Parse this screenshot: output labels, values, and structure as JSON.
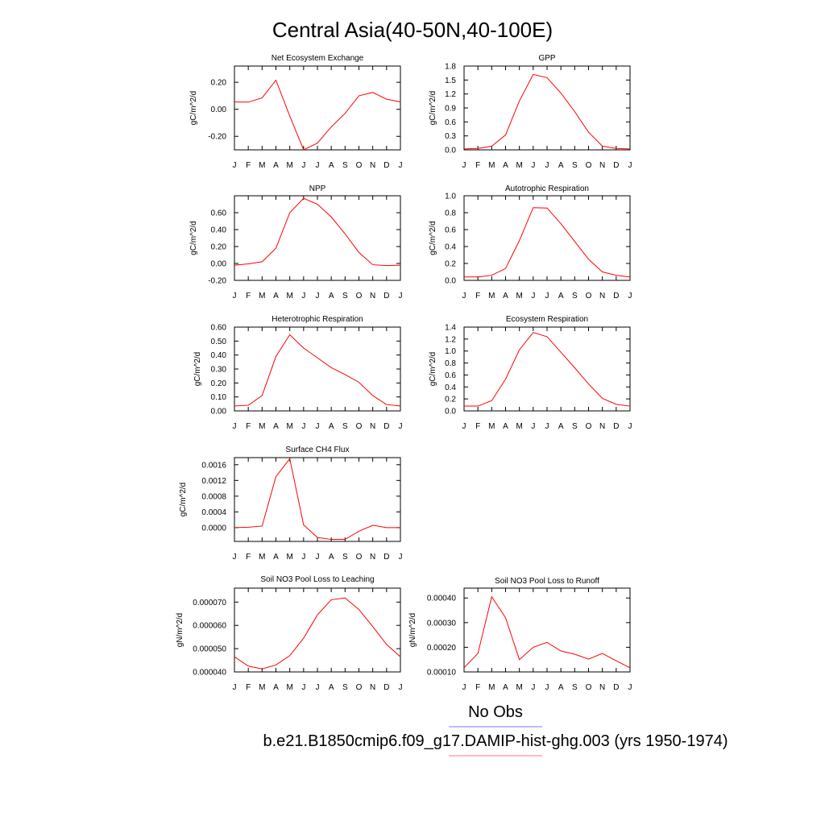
{
  "figure": {
    "title": "Central Asia(40-50N,40-100E)",
    "legend": [
      {
        "label": "No Obs",
        "color": "#7777ff"
      },
      {
        "label": "b.e21.B1850cmip6.f09_g17.DAMIP-hist-ghg.003 (yrs 1950-1974)",
        "color": "#ff7777"
      }
    ]
  },
  "chart_data": [
    {
      "type": "line",
      "title": "Net Ecosystem Exchange",
      "ylabel": "gC/m^2/d",
      "categories": [
        "J",
        "F",
        "M",
        "A",
        "M",
        "J",
        "J",
        "A",
        "S",
        "O",
        "N",
        "D",
        "J"
      ],
      "ylim": [
        -0.3,
        0.32
      ],
      "yticks": [
        -0.2,
        0.0,
        0.2
      ],
      "yticklabels": [
        "-0.20",
        "0.00",
        "0.20"
      ],
      "series": [
        {
          "color": "#ff0000",
          "values": [
            0.055,
            0.053,
            0.085,
            0.215,
            -0.05,
            -0.3,
            -0.25,
            -0.13,
            -0.03,
            0.1,
            0.125,
            0.075,
            0.055
          ]
        }
      ]
    },
    {
      "type": "line",
      "title": "GPP",
      "ylabel": "gC/m^2/d",
      "categories": [
        "J",
        "F",
        "M",
        "A",
        "M",
        "J",
        "J",
        "A",
        "S",
        "O",
        "N",
        "D",
        "J"
      ],
      "ylim": [
        0.0,
        1.8
      ],
      "yticks": [
        0.0,
        0.3,
        0.6,
        0.9,
        1.2,
        1.5,
        1.8
      ],
      "yticklabels": [
        "0.0",
        "0.3",
        "0.6",
        "0.9",
        "1.2",
        "1.5",
        "1.8"
      ],
      "series": [
        {
          "color": "#ff0000",
          "values": [
            0.02,
            0.03,
            0.08,
            0.32,
            1.05,
            1.62,
            1.55,
            1.22,
            0.82,
            0.38,
            0.08,
            0.03,
            0.02
          ]
        }
      ]
    },
    {
      "type": "line",
      "title": "NPP",
      "ylabel": "gC/m^2/d",
      "categories": [
        "J",
        "F",
        "M",
        "A",
        "M",
        "J",
        "J",
        "A",
        "S",
        "O",
        "N",
        "D",
        "J"
      ],
      "ylim": [
        -0.2,
        0.8
      ],
      "yticks": [
        -0.2,
        0.0,
        0.2,
        0.4,
        0.6
      ],
      "yticklabels": [
        "-0.20",
        "0.00",
        "0.20",
        "0.40",
        "0.60"
      ],
      "series": [
        {
          "color": "#ff0000",
          "values": [
            -0.02,
            -0.005,
            0.02,
            0.18,
            0.6,
            0.77,
            0.7,
            0.55,
            0.35,
            0.13,
            -0.015,
            -0.025,
            -0.02
          ]
        }
      ]
    },
    {
      "type": "line",
      "title": "Autotrophic Respiration",
      "ylabel": "gC/m^2/d",
      "categories": [
        "J",
        "F",
        "M",
        "A",
        "M",
        "J",
        "J",
        "A",
        "S",
        "O",
        "N",
        "D",
        "J"
      ],
      "ylim": [
        0.0,
        1.0
      ],
      "yticks": [
        0.0,
        0.2,
        0.4,
        0.6,
        0.8,
        1.0
      ],
      "yticklabels": [
        "0.0",
        "0.2",
        "0.4",
        "0.6",
        "0.8",
        "1.0"
      ],
      "series": [
        {
          "color": "#ff0000",
          "values": [
            0.04,
            0.04,
            0.06,
            0.14,
            0.47,
            0.86,
            0.855,
            0.67,
            0.46,
            0.25,
            0.1,
            0.06,
            0.04
          ]
        }
      ]
    },
    {
      "type": "line",
      "title": "Heterotrophic Respiration",
      "ylabel": "gC/m^2/d",
      "categories": [
        "J",
        "F",
        "M",
        "A",
        "M",
        "J",
        "J",
        "A",
        "S",
        "O",
        "N",
        "D",
        "J"
      ],
      "ylim": [
        0.0,
        0.6
      ],
      "yticks": [
        0.0,
        0.1,
        0.2,
        0.3,
        0.4,
        0.5,
        0.6
      ],
      "yticklabels": [
        "0.00",
        "0.10",
        "0.20",
        "0.30",
        "0.40",
        "0.50",
        "0.60"
      ],
      "series": [
        {
          "color": "#ff0000",
          "values": [
            0.035,
            0.04,
            0.11,
            0.39,
            0.545,
            0.45,
            0.38,
            0.31,
            0.26,
            0.205,
            0.11,
            0.045,
            0.035
          ]
        }
      ]
    },
    {
      "type": "line",
      "title": "Ecosystem Respiration",
      "ylabel": "gC/m^2/d",
      "categories": [
        "J",
        "F",
        "M",
        "A",
        "M",
        "J",
        "J",
        "A",
        "S",
        "O",
        "N",
        "D",
        "J"
      ],
      "ylim": [
        0.0,
        1.4
      ],
      "yticks": [
        0.0,
        0.2,
        0.4,
        0.6,
        0.8,
        1.0,
        1.2,
        1.4
      ],
      "yticklabels": [
        "0.0",
        "0.2",
        "0.4",
        "0.6",
        "0.8",
        "1.0",
        "1.2",
        "1.4"
      ],
      "series": [
        {
          "color": "#ff0000",
          "values": [
            0.08,
            0.08,
            0.17,
            0.53,
            1.02,
            1.31,
            1.24,
            0.98,
            0.72,
            0.45,
            0.21,
            0.11,
            0.08
          ]
        }
      ]
    },
    {
      "type": "line",
      "title": "Surface CH4 Flux",
      "ylabel": "gC/m^2/d",
      "categories": [
        "J",
        "F",
        "M",
        "A",
        "M",
        "J",
        "J",
        "A",
        "S",
        "O",
        "N",
        "D",
        "J"
      ],
      "ylim": [
        -0.00035,
        0.00178
      ],
      "yticks": [
        0.0,
        0.0004,
        0.0008,
        0.0012,
        0.0016
      ],
      "yticklabels": [
        "0.0000",
        "0.0004",
        "0.0008",
        "0.0012",
        "0.0016"
      ],
      "series": [
        {
          "color": "#ff0000",
          "values": [
            0.0,
            1e-05,
            4e-05,
            0.0013,
            0.00175,
            7e-05,
            -0.00025,
            -0.0003,
            -0.0003,
            -9e-05,
            6e-05,
            0.0,
            0.0
          ]
        }
      ]
    },
    {
      "type": "line",
      "title": "Soil NO3 Pool Loss to Leaching",
      "ylabel": "gN/m^2/d",
      "categories": [
        "J",
        "F",
        "M",
        "A",
        "M",
        "J",
        "J",
        "A",
        "S",
        "O",
        "N",
        "D",
        "J"
      ],
      "ylim": [
        4e-05,
        7.6e-05
      ],
      "yticks": [
        4e-05,
        5e-05,
        6e-05,
        7e-05
      ],
      "yticklabels": [
        "0.000040",
        "0.000050",
        "0.000060",
        "0.000070"
      ],
      "series": [
        {
          "color": "#ff0000",
          "values": [
            4.65e-05,
            4.25e-05,
            4.13e-05,
            4.3e-05,
            4.7e-05,
            5.45e-05,
            6.45e-05,
            7.1e-05,
            7.18e-05,
            6.68e-05,
            5.95e-05,
            5.18e-05,
            4.65e-05
          ]
        }
      ]
    },
    {
      "type": "line",
      "title": "Soil NO3 Pool Loss to Runoff",
      "ylabel": "gN/m^2/d",
      "categories": [
        "J",
        "F",
        "M",
        "A",
        "M",
        "J",
        "J",
        "A",
        "S",
        "O",
        "N",
        "D",
        "J"
      ],
      "ylim": [
        0.0001,
        0.00044
      ],
      "yticks": [
        0.0001,
        0.0002,
        0.0003,
        0.0004
      ],
      "yticklabels": [
        "0.00010",
        "0.00020",
        "0.00030",
        "0.00040"
      ],
      "series": [
        {
          "color": "#ff0000",
          "values": [
            0.000117,
            0.000175,
            0.000405,
            0.00032,
            0.00015,
            0.0002,
            0.00022,
            0.000185,
            0.000172,
            0.000152,
            0.000175,
            0.000145,
            0.000117
          ]
        }
      ]
    }
  ]
}
